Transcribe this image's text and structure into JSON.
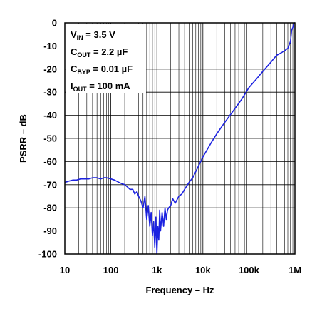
{
  "chart_data": {
    "type": "line",
    "title": "",
    "xlabel": "Frequency – Hz",
    "ylabel": "PSRR – dB",
    "xscale": "log",
    "xlim": [
      10,
      1000000
    ],
    "ylim": [
      -100,
      0
    ],
    "grid": true,
    "legend": "none",
    "colors": {
      "series": "#1c22e0",
      "grid": "#000000",
      "background": "#ffffff"
    },
    "x_tick_labels": [
      {
        "value": 10,
        "label": "10"
      },
      {
        "value": 100,
        "label": "100"
      },
      {
        "value": 1000,
        "label": "1k"
      },
      {
        "value": 10000,
        "label": "10k"
      },
      {
        "value": 100000,
        "label": "100k"
      },
      {
        "value": 1000000,
        "label": "1M"
      }
    ],
    "y_tick_labels": [
      {
        "value": 0,
        "label": "0"
      },
      {
        "value": -10,
        "label": "-10"
      },
      {
        "value": -20,
        "label": "-20"
      },
      {
        "value": -30,
        "label": "-30"
      },
      {
        "value": -40,
        "label": "-40"
      },
      {
        "value": -50,
        "label": "-50"
      },
      {
        "value": -60,
        "label": "-60"
      },
      {
        "value": -70,
        "label": "-70"
      },
      {
        "value": -80,
        "label": "-80"
      },
      {
        "value": -90,
        "label": "-90"
      },
      {
        "value": -100,
        "label": "-100"
      }
    ],
    "annotations": [
      {
        "main": "V",
        "sub": "IN",
        "rest": " = 3.5 V"
      },
      {
        "main": "C",
        "sub": "OUT",
        "rest": " = 2.2 µF"
      },
      {
        "main": "C",
        "sub": "BYP",
        "rest": " = 0.01 µF"
      },
      {
        "main": "I",
        "sub": "OUT",
        "rest": " = 100 mA"
      }
    ],
    "series": [
      {
        "x": [
          10,
          12,
          15,
          18,
          22,
          27,
          33,
          40,
          50,
          60,
          70,
          80,
          100,
          120,
          150,
          170,
          200,
          230,
          260,
          300,
          330,
          370,
          400,
          450,
          500,
          550,
          600,
          650,
          700,
          750,
          800,
          850,
          900,
          950,
          1000,
          1050,
          1100,
          1150,
          1200,
          1300,
          1400,
          1500,
          1600,
          1700,
          1800,
          2000,
          2200,
          2500,
          3000,
          3500,
          4000,
          5000,
          6000,
          8000,
          10000,
          15000,
          20000,
          30000,
          50000,
          70000,
          100000,
          150000,
          200000,
          300000,
          400000,
          500000,
          600000,
          700000,
          800000,
          850000,
          900000,
          950000,
          1000000
        ],
        "y": [
          -69,
          -68.5,
          -68,
          -68,
          -67.5,
          -67.5,
          -67.5,
          -67,
          -67,
          -67.5,
          -67,
          -67,
          -67.5,
          -68,
          -69,
          -69.5,
          -70,
          -71,
          -72,
          -72,
          -74,
          -73,
          -75,
          -77,
          -80,
          -75,
          -85,
          -79,
          -88,
          -82,
          -92,
          -86,
          -97,
          -84,
          -100,
          -88,
          -94,
          -81,
          -90,
          -82,
          -88,
          -80,
          -85,
          -81,
          -80,
          -79,
          -76,
          -78,
          -75,
          -74,
          -72,
          -69,
          -67,
          -62,
          -58,
          -52,
          -48,
          -43,
          -37,
          -33,
          -28,
          -24,
          -21,
          -17,
          -14,
          -13,
          -12,
          -11,
          -8,
          -3,
          -2,
          0,
          0
        ]
      }
    ]
  }
}
